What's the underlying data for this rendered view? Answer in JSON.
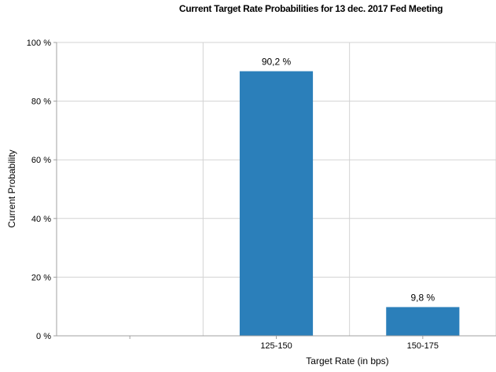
{
  "chart_data": {
    "type": "bar",
    "title": "Current Target Rate Probabilities for 13 dec. 2017 Fed Meeting",
    "xlabel": "Target Rate (in bps)",
    "ylabel": "Current Probability",
    "categories": [
      "",
      "125-150",
      "150-175"
    ],
    "values": [
      null,
      90.2,
      9.8
    ],
    "data_labels": [
      "",
      "90,2 %",
      "9,8 %"
    ],
    "ylim": [
      0,
      100
    ],
    "yticks": [
      0,
      20,
      40,
      60,
      80,
      100
    ],
    "ytick_labels": [
      "0 %",
      "20 %",
      "40 %",
      "60 %",
      "80 %",
      "100 %"
    ],
    "grid": true,
    "colors": {
      "bar": "#2b7fba",
      "grid": "#d3d3d3",
      "axis": "#a0a0a0"
    }
  }
}
